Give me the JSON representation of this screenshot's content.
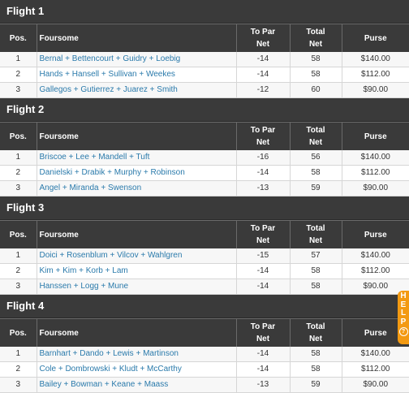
{
  "columns": {
    "pos": "Pos.",
    "foursome": "Foursome",
    "to_par_1": "To Par",
    "to_par_2": "Net",
    "total_1": "Total",
    "total_2": "Net",
    "purse": "Purse"
  },
  "flights": [
    {
      "title": "Flight 1",
      "rows": [
        {
          "pos": "1",
          "names": "Bernal + Bettencourt + Guidry + Loebig",
          "to_par": "-14",
          "total": "58",
          "purse": "$140.00"
        },
        {
          "pos": "2",
          "names": "Hands + Hansell + Sullivan + Weekes",
          "to_par": "-14",
          "total": "58",
          "purse": "$112.00"
        },
        {
          "pos": "3",
          "names": "Gallegos + Gutierrez + Juarez + Smith",
          "to_par": "-12",
          "total": "60",
          "purse": "$90.00"
        }
      ]
    },
    {
      "title": "Flight 2",
      "rows": [
        {
          "pos": "1",
          "names": "Briscoe + Lee + Mandell + Tuft",
          "to_par": "-16",
          "total": "56",
          "purse": "$140.00"
        },
        {
          "pos": "2",
          "names": "Danielski + Drabik + Murphy + Robinson",
          "to_par": "-14",
          "total": "58",
          "purse": "$112.00"
        },
        {
          "pos": "3",
          "names": "Angel + Miranda + Swenson",
          "to_par": "-13",
          "total": "59",
          "purse": "$90.00"
        }
      ]
    },
    {
      "title": "Flight 3",
      "rows": [
        {
          "pos": "1",
          "names": "Doici + Rosenblum + Vilcov + Wahlgren",
          "to_par": "-15",
          "total": "57",
          "purse": "$140.00"
        },
        {
          "pos": "2",
          "names": "Kim + Kim + Korb + Lam",
          "to_par": "-14",
          "total": "58",
          "purse": "$112.00"
        },
        {
          "pos": "3",
          "names": "Hanssen + Logg + Mune",
          "to_par": "-14",
          "total": "58",
          "purse": "$90.00"
        }
      ]
    },
    {
      "title": "Flight 4",
      "rows": [
        {
          "pos": "1",
          "names": "Barnhart + Dando + Lewis + Martinson",
          "to_par": "-14",
          "total": "58",
          "purse": "$140.00"
        },
        {
          "pos": "2",
          "names": "Cole + Dombrowski + Kludt + McCarthy",
          "to_par": "-14",
          "total": "58",
          "purse": "$112.00"
        },
        {
          "pos": "3",
          "names": "Bailey + Bowman + Keane + Maass",
          "to_par": "-13",
          "total": "59",
          "purse": "$90.00"
        }
      ]
    }
  ],
  "help_tab": {
    "letters": [
      "H",
      "E",
      "L",
      "P"
    ],
    "icon": "question-icon",
    "icon_glyph": "?"
  },
  "colors": {
    "header_bg": "#3a3a3a",
    "link": "#2a7aab",
    "help_tab": "#f39a12"
  }
}
